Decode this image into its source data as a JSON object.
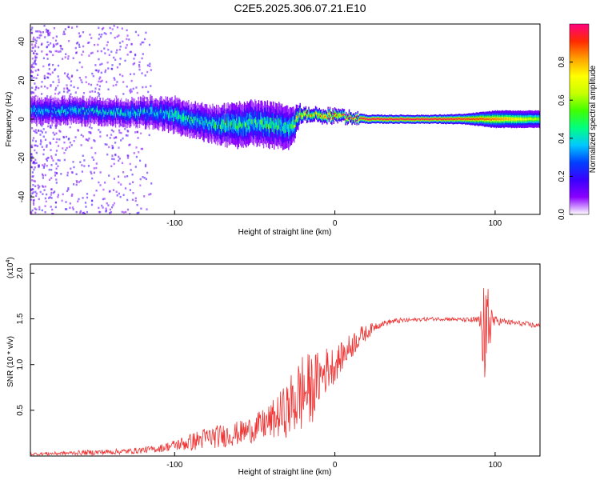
{
  "figure_title": "C2E5.2025.306.07.21.E10",
  "colors": {
    "snr_line": "#ee3333",
    "ridge_high": "#ff2a2a",
    "ridge_mid": "#00e000",
    "ridge_low": "#6a00ff"
  },
  "chart_data": [
    {
      "type": "heatmap",
      "title": "",
      "xlabel": "Height of straight line (km)",
      "ylabel": "Frequency (Hz)",
      "xlim": [
        -190,
        128
      ],
      "ylim": [
        -49,
        49
      ],
      "xticks": [
        -100,
        0,
        100
      ],
      "yticks": [
        -40,
        -20,
        0,
        20,
        40
      ],
      "colorbar": {
        "label": "Normalized spectral amplitude",
        "range": [
          0,
          1
        ],
        "ticks": [
          0.0,
          0.2,
          0.4,
          0.6,
          0.8
        ],
        "tick_labels": [
          "0.0",
          "0.2",
          "0.4",
          "0.6",
          "0.8"
        ],
        "colors": [
          "#ffffff",
          "#8a00ff",
          "#3a00ff",
          "#0040ff",
          "#00c8ff",
          "#00ff80",
          "#40ff00",
          "#c8ff00",
          "#ffff00",
          "#ffa000",
          "#ff2a00",
          "#ff0080"
        ]
      },
      "ridge_profile": {
        "x": [
          -190,
          -170,
          -150,
          -130,
          -110,
          -100,
          -90,
          -80,
          -70,
          -60,
          -50,
          -40,
          -30,
          -26,
          -24,
          -22,
          -20,
          -10,
          0,
          10,
          20,
          40,
          60,
          80,
          100,
          128
        ],
        "freq": [
          4,
          4.5,
          4,
          3.5,
          3,
          2,
          0,
          -2,
          -3,
          -3,
          -2,
          -3,
          -4,
          -3,
          0,
          2.5,
          2.5,
          2,
          1.5,
          1,
          0,
          0,
          0,
          0,
          0,
          0
        ],
        "band_half_width": [
          3,
          3,
          3,
          3,
          3.5,
          4,
          4,
          4,
          4.5,
          5,
          5,
          5,
          5,
          4,
          3,
          2,
          1.5,
          1.5,
          1.5,
          1.2,
          1,
          1,
          1,
          1.2,
          2,
          2
        ],
        "amplitude": [
          0.35,
          0.4,
          0.4,
          0.4,
          0.4,
          0.45,
          0.45,
          0.45,
          0.5,
          0.5,
          0.5,
          0.5,
          0.5,
          0.55,
          0.7,
          0.85,
          0.85,
          0.85,
          0.9,
          0.95,
          1,
          1,
          1,
          0.95,
          0.85,
          0.6
        ]
      }
    },
    {
      "type": "line",
      "title": "",
      "xlabel": "Height of straight line (km)",
      "ylabel": "SNR (10 * v/v)",
      "y_scale_label": "(x10",
      "y_scale_exponent": "4",
      "y_scale_close": ")",
      "xlim": [
        -190,
        128
      ],
      "ylim": [
        0,
        2.1
      ],
      "xticks": [
        -100,
        0,
        100
      ],
      "yticks": [
        0.5,
        1.0,
        1.5,
        2.0
      ],
      "ytick_labels": [
        "0.5",
        "1.0",
        "1.5",
        "2.0"
      ],
      "series": [
        {
          "name": "SNR",
          "envelope_x": [
            -190,
            -170,
            -150,
            -130,
            -110,
            -100,
            -90,
            -80,
            -70,
            -60,
            -50,
            -40,
            -30,
            -25,
            -20,
            -15,
            -10,
            -5,
            0,
            5,
            10,
            15,
            20,
            25,
            30,
            35,
            40,
            50,
            60,
            70,
            80,
            90,
            93,
            95,
            97,
            100,
            110,
            120,
            128
          ],
          "envelope_y": [
            0.02,
            0.03,
            0.04,
            0.05,
            0.08,
            0.12,
            0.15,
            0.2,
            0.22,
            0.25,
            0.3,
            0.38,
            0.5,
            0.6,
            0.7,
            0.72,
            0.85,
            0.95,
            1.0,
            1.1,
            1.2,
            1.3,
            1.35,
            1.42,
            1.45,
            1.47,
            1.48,
            1.49,
            1.5,
            1.5,
            1.49,
            1.48,
            1.35,
            1.4,
            1.5,
            1.48,
            1.46,
            1.44,
            1.42
          ],
          "noise_amplitude": [
            0.02,
            0.02,
            0.03,
            0.03,
            0.04,
            0.06,
            0.1,
            0.12,
            0.13,
            0.13,
            0.15,
            0.2,
            0.3,
            0.4,
            0.45,
            0.4,
            0.3,
            0.25,
            0.2,
            0.15,
            0.15,
            0.12,
            0.08,
            0.05,
            0.03,
            0.03,
            0.03,
            0.02,
            0.02,
            0.02,
            0.02,
            0.05,
            0.6,
            0.6,
            0.3,
            0.05,
            0.03,
            0.03,
            0.03
          ]
        }
      ]
    }
  ]
}
